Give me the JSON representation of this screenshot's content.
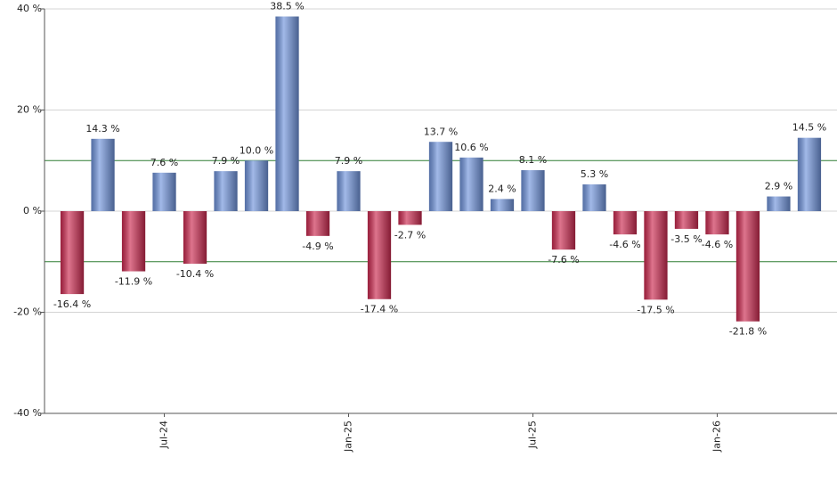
{
  "chart_data": {
    "type": "bar",
    "categories": [
      null,
      null,
      null,
      "Jul-24",
      null,
      null,
      null,
      null,
      null,
      "Jan-25",
      null,
      null,
      null,
      null,
      null,
      "Jul-25",
      null,
      null,
      null,
      null,
      null,
      "Jan-26",
      null,
      null,
      null
    ],
    "values": [
      -16.4,
      14.3,
      -11.9,
      7.6,
      -10.4,
      7.9,
      10.0,
      38.5,
      -4.9,
      7.9,
      -17.4,
      -2.7,
      13.7,
      10.6,
      2.4,
      8.1,
      -7.6,
      5.3,
      -4.6,
      -17.5,
      -3.5,
      -4.6,
      -21.8,
      2.9,
      14.5
    ],
    "value_labels": [
      "-16.4 %",
      "14.3 %",
      "-11.9 %",
      "7.6 %",
      "-10.4 %",
      "7.9 %",
      "10.0 %",
      "38.5 %",
      "-4.9 %",
      "7.9 %",
      "-17.4 %",
      "-2.7 %",
      "13.7 %",
      "10.6 %",
      "2.4 %",
      "8.1 %",
      "-7.6 %",
      "5.3 %",
      "-4.6 %",
      "-17.5 %",
      "-3.5 %",
      "-4.6 %",
      "-21.8 %",
      "2.9 %",
      "14.5 %"
    ],
    "positive_color": "#7094dc",
    "negative_color": "#cc2a50",
    "ylim": [
      -40,
      40
    ],
    "yticks": [
      {
        "value": -40,
        "label": "-40 %"
      },
      {
        "value": -20,
        "label": "-20 %"
      },
      {
        "value": 0,
        "label": "0 %"
      },
      {
        "value": 20,
        "label": "20 %"
      },
      {
        "value": 40,
        "label": "40 %"
      }
    ],
    "reference_lines": [
      10,
      -10
    ],
    "reference_color": "#2e7d32",
    "grid": true
  }
}
